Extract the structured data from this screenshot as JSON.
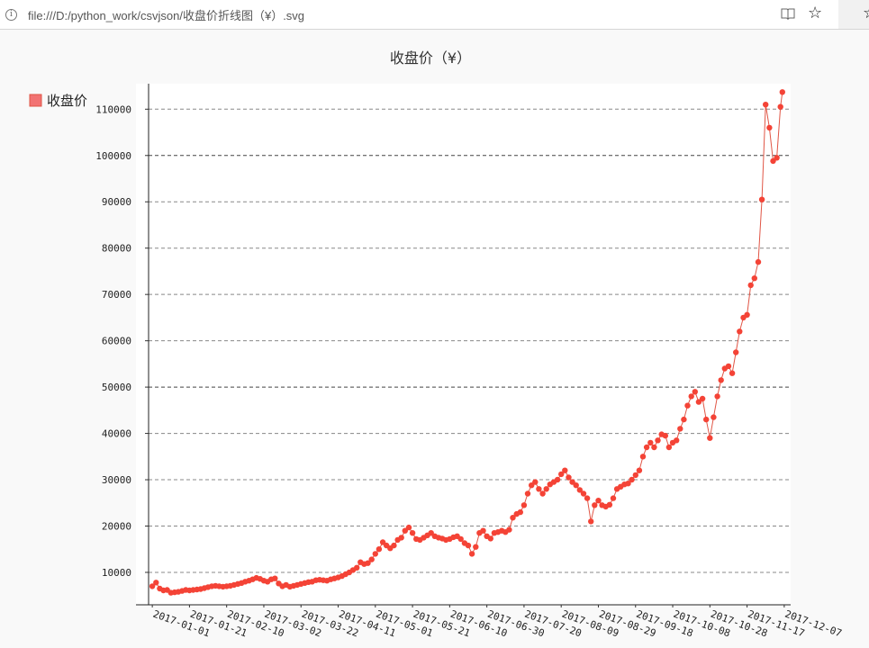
{
  "browser": {
    "url": "file:///D:/python_work/csvjson/收盘价折线图（¥）.svg",
    "star_glyph": "☆"
  },
  "colors": {
    "series": "#f44336",
    "series_line": "#e05545",
    "legend_swatch": "#f27373",
    "grid": "#888888",
    "plot_bg": "#ffffff",
    "page_bg": "#f9f9f9"
  },
  "chart_data": {
    "type": "line",
    "title": "收盘价（¥）",
    "legend": {
      "placement": "top-left",
      "items": [
        "收盘价"
      ]
    },
    "grid": true,
    "x_tick_labels": [
      "2017-01-01",
      "2017-01-21",
      "2017-02-10",
      "2017-03-02",
      "2017-03-22",
      "2017-04-11",
      "2017-05-01",
      "2017-05-21",
      "2017-06-10",
      "2017-06-30",
      "2017-07-20",
      "2017-08-09",
      "2017-08-29",
      "2017-09-18",
      "2017-10-08",
      "2017-10-28",
      "2017-11-17",
      "2017-12-07"
    ],
    "y_ticks": [
      10000,
      20000,
      30000,
      40000,
      50000,
      60000,
      70000,
      80000,
      90000,
      100000,
      110000
    ],
    "ylim": [
      3000,
      115500
    ],
    "xlim_days": [
      -2,
      342
    ],
    "series": [
      {
        "name": "收盘价",
        "points": [
          [
            0,
            7000
          ],
          [
            2,
            7800
          ],
          [
            4,
            6500
          ],
          [
            6,
            6100
          ],
          [
            8,
            6200
          ],
          [
            10,
            5600
          ],
          [
            12,
            5700
          ],
          [
            14,
            5800
          ],
          [
            16,
            6000
          ],
          [
            18,
            6200
          ],
          [
            20,
            6100
          ],
          [
            22,
            6200
          ],
          [
            24,
            6300
          ],
          [
            26,
            6400
          ],
          [
            28,
            6600
          ],
          [
            30,
            6800
          ],
          [
            32,
            7000
          ],
          [
            34,
            7100
          ],
          [
            36,
            7000
          ],
          [
            38,
            6900
          ],
          [
            40,
            7000
          ],
          [
            42,
            7100
          ],
          [
            44,
            7300
          ],
          [
            46,
            7500
          ],
          [
            48,
            7700
          ],
          [
            50,
            8000
          ],
          [
            52,
            8200
          ],
          [
            54,
            8500
          ],
          [
            56,
            8800
          ],
          [
            58,
            8600
          ],
          [
            60,
            8200
          ],
          [
            62,
            8000
          ],
          [
            64,
            8500
          ],
          [
            66,
            8700
          ],
          [
            68,
            7600
          ],
          [
            70,
            7000
          ],
          [
            72,
            7300
          ],
          [
            74,
            6900
          ],
          [
            76,
            7100
          ],
          [
            78,
            7300
          ],
          [
            80,
            7500
          ],
          [
            82,
            7700
          ],
          [
            84,
            7900
          ],
          [
            86,
            8000
          ],
          [
            88,
            8300
          ],
          [
            90,
            8400
          ],
          [
            92,
            8300
          ],
          [
            94,
            8200
          ],
          [
            96,
            8500
          ],
          [
            98,
            8700
          ],
          [
            100,
            8900
          ],
          [
            102,
            9200
          ],
          [
            104,
            9600
          ],
          [
            106,
            10000
          ],
          [
            108,
            10500
          ],
          [
            110,
            11000
          ],
          [
            112,
            12200
          ],
          [
            114,
            11800
          ],
          [
            116,
            12000
          ],
          [
            118,
            12800
          ],
          [
            120,
            14000
          ],
          [
            122,
            15000
          ],
          [
            124,
            16500
          ],
          [
            126,
            15800
          ],
          [
            128,
            15200
          ],
          [
            130,
            15800
          ],
          [
            132,
            17000
          ],
          [
            134,
            17500
          ],
          [
            136,
            19000
          ],
          [
            138,
            19700
          ],
          [
            140,
            18500
          ],
          [
            142,
            17200
          ],
          [
            144,
            17000
          ],
          [
            146,
            17500
          ],
          [
            148,
            18000
          ],
          [
            150,
            18500
          ],
          [
            152,
            17800
          ],
          [
            154,
            17500
          ],
          [
            156,
            17300
          ],
          [
            158,
            17000
          ],
          [
            160,
            17200
          ],
          [
            162,
            17600
          ],
          [
            164,
            17800
          ],
          [
            166,
            17200
          ],
          [
            168,
            16300
          ],
          [
            170,
            15800
          ],
          [
            172,
            14000
          ],
          [
            174,
            15500
          ],
          [
            176,
            18500
          ],
          [
            178,
            19000
          ],
          [
            180,
            17800
          ],
          [
            182,
            17300
          ],
          [
            184,
            18500
          ],
          [
            186,
            18700
          ],
          [
            188,
            19000
          ],
          [
            190,
            18700
          ],
          [
            192,
            19200
          ],
          [
            194,
            21800
          ],
          [
            196,
            22600
          ],
          [
            198,
            23000
          ],
          [
            200,
            24500
          ],
          [
            202,
            27000
          ],
          [
            204,
            28800
          ],
          [
            206,
            29500
          ],
          [
            208,
            28000
          ],
          [
            210,
            27000
          ],
          [
            212,
            28000
          ],
          [
            214,
            29000
          ],
          [
            216,
            29500
          ],
          [
            218,
            30000
          ],
          [
            220,
            31200
          ],
          [
            222,
            32000
          ],
          [
            224,
            30500
          ],
          [
            226,
            29500
          ],
          [
            228,
            28800
          ],
          [
            230,
            27800
          ],
          [
            232,
            27000
          ],
          [
            234,
            26000
          ],
          [
            236,
            21000
          ],
          [
            238,
            24500
          ],
          [
            240,
            25500
          ],
          [
            242,
            24500
          ],
          [
            244,
            24200
          ],
          [
            246,
            24600
          ],
          [
            248,
            26000
          ],
          [
            250,
            28000
          ],
          [
            252,
            28500
          ],
          [
            254,
            29000
          ],
          [
            256,
            29200
          ],
          [
            258,
            30000
          ],
          [
            260,
            31000
          ],
          [
            262,
            32000
          ],
          [
            264,
            35000
          ],
          [
            266,
            37000
          ],
          [
            268,
            38000
          ],
          [
            270,
            37000
          ],
          [
            272,
            38500
          ],
          [
            274,
            39800
          ],
          [
            276,
            39500
          ],
          [
            278,
            37000
          ],
          [
            280,
            38000
          ],
          [
            282,
            38500
          ],
          [
            284,
            41000
          ],
          [
            286,
            43000
          ],
          [
            288,
            46000
          ],
          [
            290,
            48000
          ],
          [
            292,
            49000
          ],
          [
            294,
            46800
          ],
          [
            296,
            47500
          ],
          [
            298,
            43000
          ],
          [
            300,
            39000
          ],
          [
            302,
            43500
          ],
          [
            304,
            48000
          ],
          [
            306,
            51500
          ],
          [
            308,
            54000
          ],
          [
            310,
            54500
          ],
          [
            312,
            53000
          ],
          [
            314,
            57500
          ],
          [
            316,
            62000
          ],
          [
            318,
            65000
          ],
          [
            320,
            65600
          ],
          [
            322,
            72000
          ],
          [
            324,
            73500
          ],
          [
            326,
            77000
          ],
          [
            328,
            90500
          ],
          [
            330,
            111000
          ],
          [
            332,
            106000
          ],
          [
            334,
            98800
          ],
          [
            336,
            99500
          ],
          [
            338,
            110500
          ],
          [
            339,
            113700
          ]
        ]
      }
    ]
  }
}
